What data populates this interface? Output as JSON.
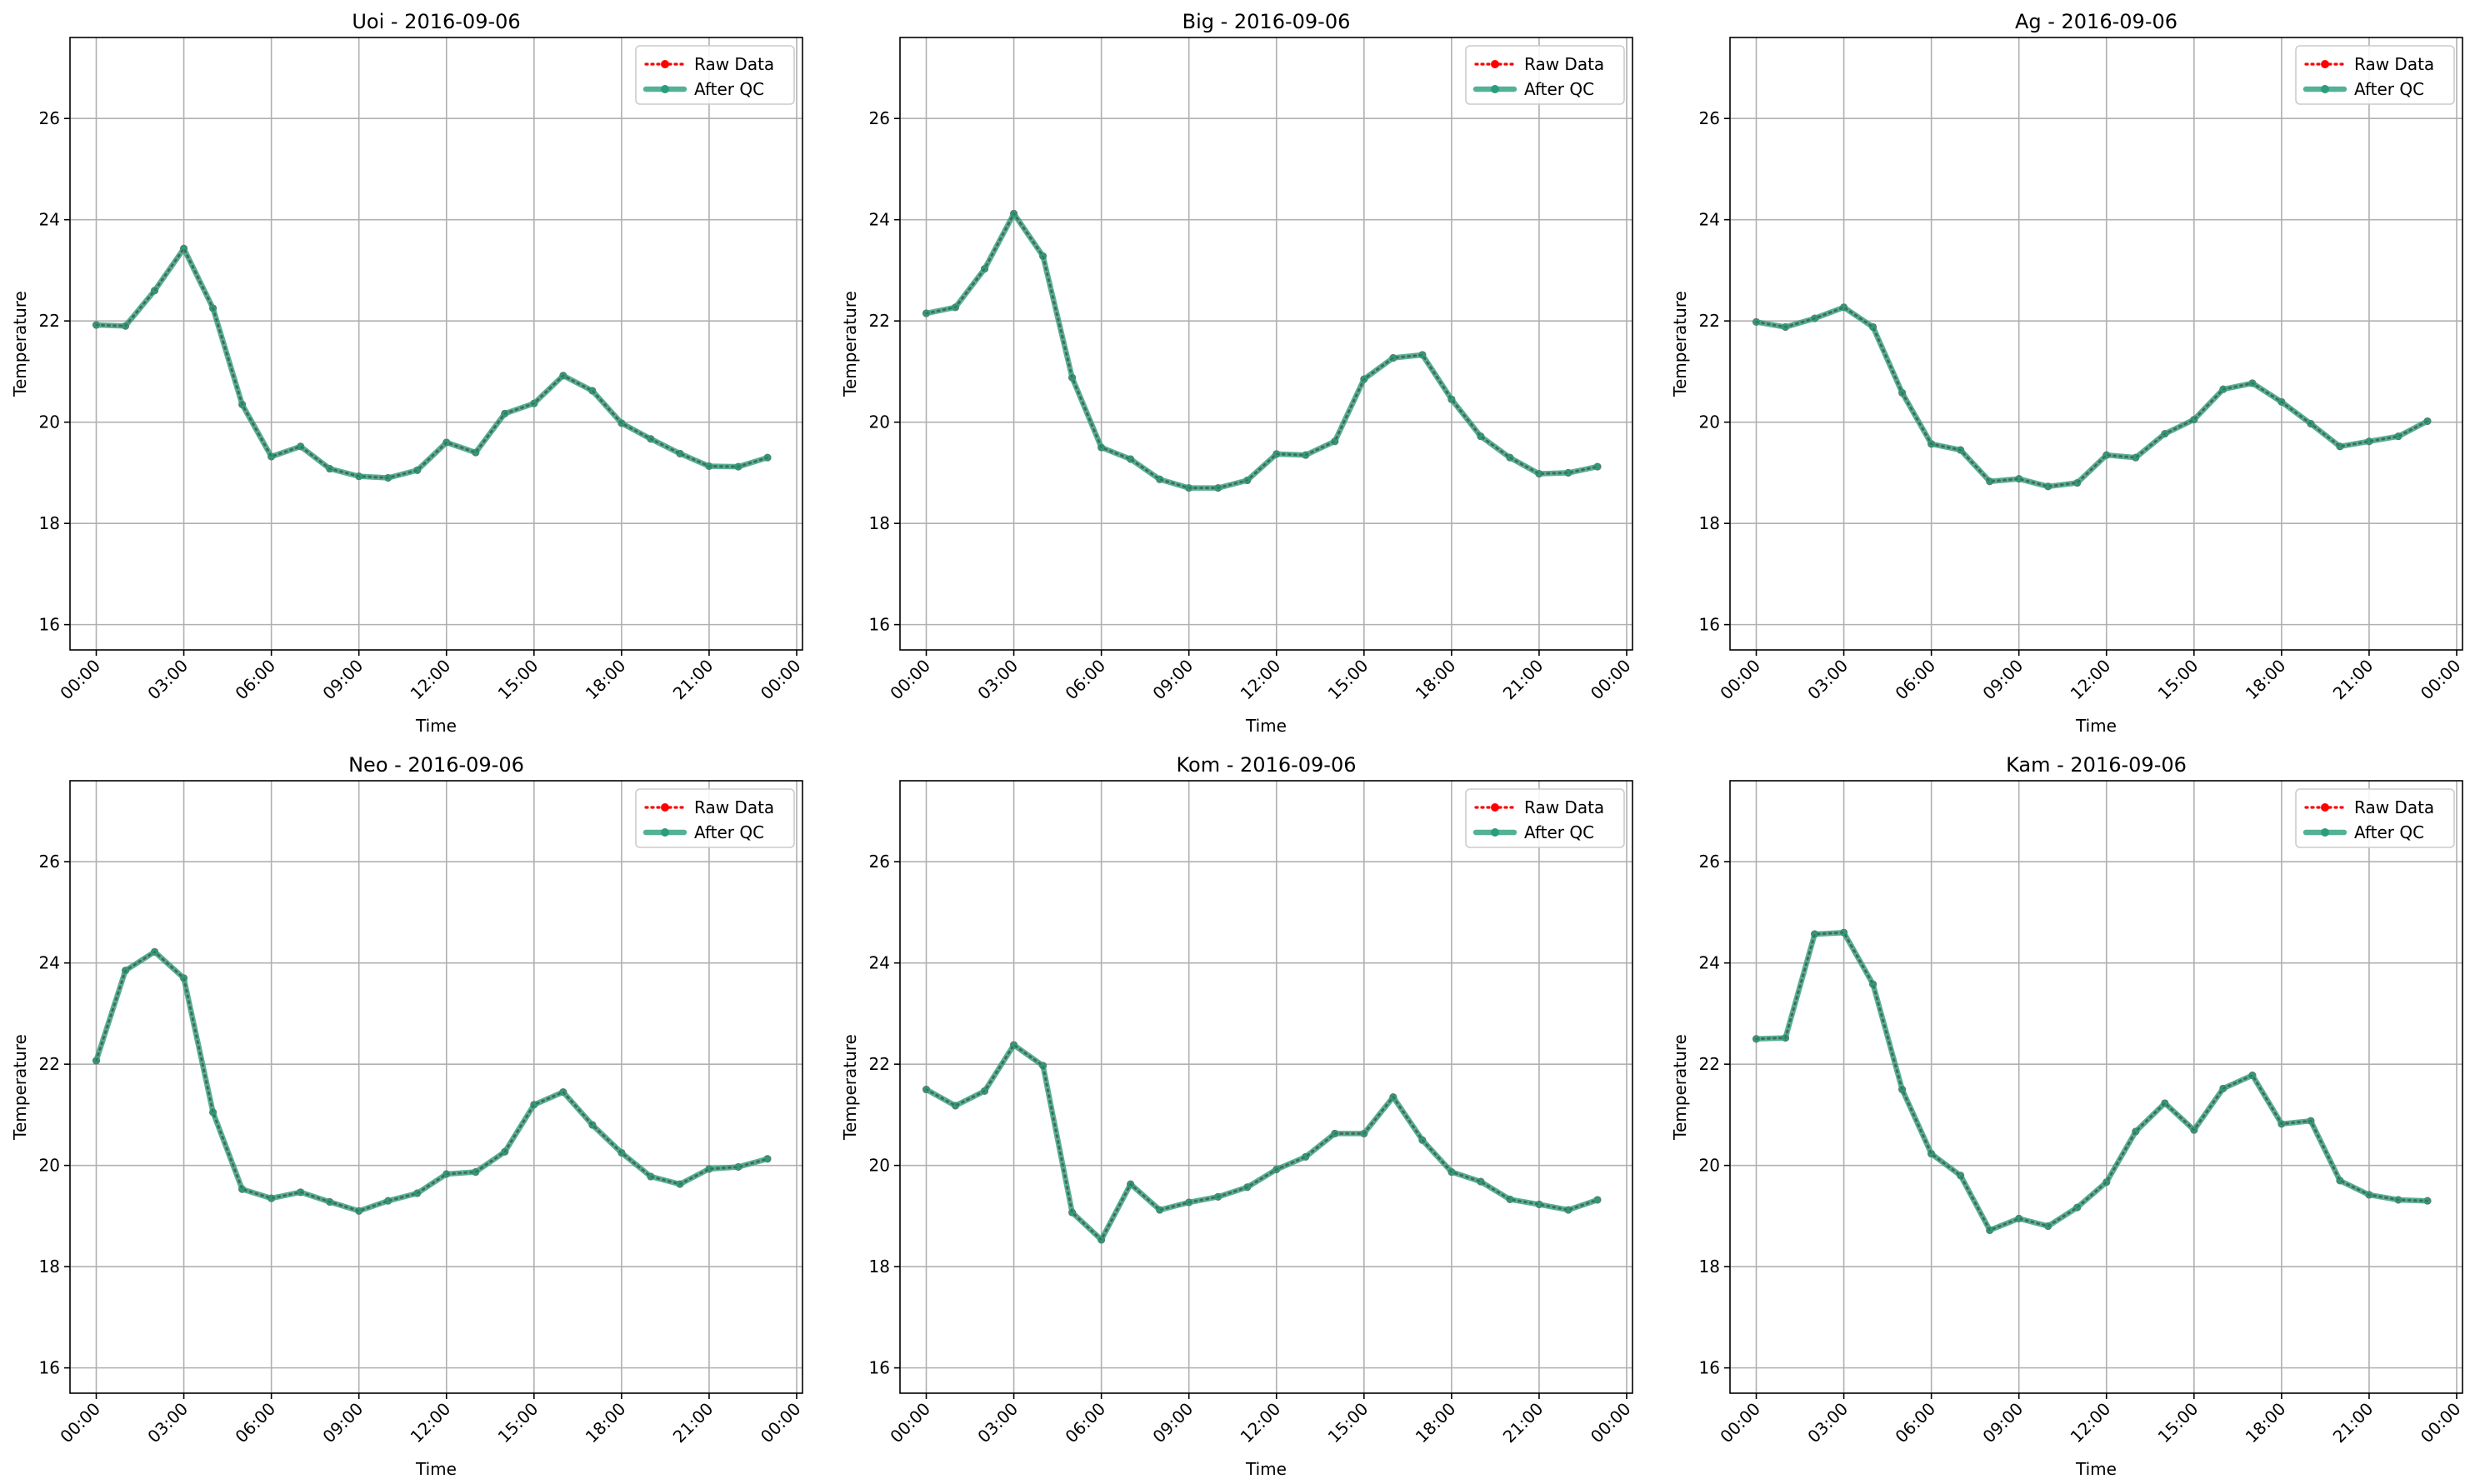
{
  "chart_data": [
    {
      "type": "line",
      "title": "Uoi - 2016-09-06",
      "xlabel": "Time",
      "ylabel": "Temperature",
      "xlim": [
        -0.9,
        24.2
      ],
      "ylim": [
        15.5,
        27.6
      ],
      "xticks": [
        0,
        3,
        6,
        9,
        12,
        15,
        18,
        21,
        24
      ],
      "xtick_labels": [
        "00:00",
        "03:00",
        "06:00",
        "09:00",
        "12:00",
        "15:00",
        "18:00",
        "21:00",
        "00:00"
      ],
      "yticks": [
        16,
        18,
        20,
        22,
        24,
        26
      ],
      "ytick_labels": [
        "16",
        "18",
        "20",
        "22",
        "24",
        "26"
      ],
      "grid": true,
      "legend_position": "top-right",
      "x": [
        0,
        1,
        2,
        3,
        4,
        5,
        6,
        7,
        8,
        9,
        10,
        11,
        12,
        13,
        14,
        15,
        16,
        17,
        18,
        19,
        20,
        21,
        22,
        23
      ],
      "series": [
        {
          "name": "Raw Data",
          "color": "#ff0000",
          "values": [
            21.92,
            21.9,
            22.6,
            23.43,
            22.25,
            20.35,
            19.32,
            19.52,
            19.08,
            18.93,
            18.9,
            19.05,
            19.6,
            19.4,
            20.17,
            20.37,
            20.92,
            20.62,
            19.98,
            19.67,
            19.38,
            19.13,
            19.12,
            19.3
          ]
        },
        {
          "name": "After QC",
          "color": "#2a9d7c",
          "values": [
            21.92,
            21.9,
            22.6,
            23.43,
            22.25,
            20.35,
            19.32,
            19.52,
            19.08,
            18.93,
            18.9,
            19.05,
            19.6,
            19.4,
            20.17,
            20.37,
            20.92,
            20.62,
            19.98,
            19.67,
            19.38,
            19.13,
            19.12,
            19.3
          ]
        }
      ]
    },
    {
      "type": "line",
      "title": "Big - 2016-09-06",
      "xlabel": "Time",
      "ylabel": "Temperature",
      "xlim": [
        -0.9,
        24.2
      ],
      "ylim": [
        15.5,
        27.6
      ],
      "xticks": [
        0,
        3,
        6,
        9,
        12,
        15,
        18,
        21,
        24
      ],
      "xtick_labels": [
        "00:00",
        "03:00",
        "06:00",
        "09:00",
        "12:00",
        "15:00",
        "18:00",
        "21:00",
        "00:00"
      ],
      "yticks": [
        16,
        18,
        20,
        22,
        24,
        26
      ],
      "ytick_labels": [
        "16",
        "18",
        "20",
        "22",
        "24",
        "26"
      ],
      "grid": true,
      "legend_position": "top-right",
      "x": [
        0,
        1,
        2,
        3,
        4,
        5,
        6,
        7,
        8,
        9,
        10,
        11,
        12,
        13,
        14,
        15,
        16,
        17,
        18,
        19,
        20,
        21,
        22,
        23
      ],
      "series": [
        {
          "name": "Raw Data",
          "color": "#ff0000",
          "values": [
            22.15,
            22.27,
            23.03,
            24.12,
            23.28,
            20.88,
            19.5,
            19.27,
            18.87,
            18.7,
            18.7,
            18.85,
            19.37,
            19.35,
            19.62,
            20.85,
            21.27,
            21.33,
            20.45,
            19.72,
            19.3,
            18.98,
            19.0,
            19.12
          ]
        },
        {
          "name": "After QC",
          "color": "#2a9d7c",
          "values": [
            22.15,
            22.27,
            23.03,
            24.12,
            23.28,
            20.88,
            19.5,
            19.27,
            18.87,
            18.7,
            18.7,
            18.85,
            19.37,
            19.35,
            19.62,
            20.85,
            21.27,
            21.33,
            20.45,
            19.72,
            19.3,
            18.98,
            19.0,
            19.12
          ]
        }
      ]
    },
    {
      "type": "line",
      "title": "Ag - 2016-09-06",
      "xlabel": "Time",
      "ylabel": "Temperature",
      "xlim": [
        -0.9,
        24.2
      ],
      "ylim": [
        15.5,
        27.6
      ],
      "xticks": [
        0,
        3,
        6,
        9,
        12,
        15,
        18,
        21,
        24
      ],
      "xtick_labels": [
        "00:00",
        "03:00",
        "06:00",
        "09:00",
        "12:00",
        "15:00",
        "18:00",
        "21:00",
        "00:00"
      ],
      "yticks": [
        16,
        18,
        20,
        22,
        24,
        26
      ],
      "ytick_labels": [
        "16",
        "18",
        "20",
        "22",
        "24",
        "26"
      ],
      "grid": true,
      "legend_position": "top-right",
      "x": [
        0,
        1,
        2,
        3,
        4,
        5,
        6,
        7,
        8,
        9,
        10,
        11,
        12,
        13,
        14,
        15,
        16,
        17,
        18,
        19,
        20,
        21,
        22,
        23
      ],
      "series": [
        {
          "name": "Raw Data",
          "color": "#ff0000",
          "values": [
            21.98,
            21.88,
            22.05,
            22.27,
            21.88,
            20.58,
            19.57,
            19.45,
            18.83,
            18.88,
            18.73,
            18.8,
            19.35,
            19.3,
            19.77,
            20.05,
            20.65,
            20.77,
            20.4,
            19.97,
            19.52,
            19.62,
            19.72,
            20.02
          ]
        },
        {
          "name": "After QC",
          "color": "#2a9d7c",
          "values": [
            21.98,
            21.88,
            22.05,
            22.27,
            21.88,
            20.58,
            19.57,
            19.45,
            18.83,
            18.88,
            18.73,
            18.8,
            19.35,
            19.3,
            19.77,
            20.05,
            20.65,
            20.77,
            20.4,
            19.97,
            19.52,
            19.62,
            19.72,
            20.02
          ]
        }
      ]
    },
    {
      "type": "line",
      "title": "Neo - 2016-09-06",
      "xlabel": "Time",
      "ylabel": "Temperature",
      "xlim": [
        -0.9,
        24.2
      ],
      "ylim": [
        15.5,
        27.6
      ],
      "xticks": [
        0,
        3,
        6,
        9,
        12,
        15,
        18,
        21,
        24
      ],
      "xtick_labels": [
        "00:00",
        "03:00",
        "06:00",
        "09:00",
        "12:00",
        "15:00",
        "18:00",
        "21:00",
        "00:00"
      ],
      "yticks": [
        16,
        18,
        20,
        22,
        24,
        26
      ],
      "ytick_labels": [
        "16",
        "18",
        "20",
        "22",
        "24",
        "26"
      ],
      "grid": true,
      "legend_position": "top-right",
      "x": [
        0,
        1,
        2,
        3,
        4,
        5,
        6,
        7,
        8,
        9,
        10,
        11,
        12,
        13,
        14,
        15,
        16,
        17,
        18,
        19,
        20,
        21,
        22,
        23
      ],
      "series": [
        {
          "name": "Raw Data",
          "color": "#ff0000",
          "values": [
            22.07,
            23.85,
            24.22,
            23.7,
            21.05,
            19.53,
            19.35,
            19.47,
            19.28,
            19.1,
            19.3,
            19.45,
            19.83,
            19.87,
            20.27,
            21.2,
            21.45,
            20.8,
            20.25,
            19.78,
            19.63,
            19.93,
            19.97,
            20.13
          ]
        },
        {
          "name": "After QC",
          "color": "#2a9d7c",
          "values": [
            22.07,
            23.85,
            24.22,
            23.7,
            21.05,
            19.53,
            19.35,
            19.47,
            19.28,
            19.1,
            19.3,
            19.45,
            19.83,
            19.87,
            20.27,
            21.2,
            21.45,
            20.8,
            20.25,
            19.78,
            19.63,
            19.93,
            19.97,
            20.13
          ]
        }
      ]
    },
    {
      "type": "line",
      "title": "Kom - 2016-09-06",
      "xlabel": "Time",
      "ylabel": "Temperature",
      "xlim": [
        -0.9,
        24.2
      ],
      "ylim": [
        15.5,
        27.6
      ],
      "xticks": [
        0,
        3,
        6,
        9,
        12,
        15,
        18,
        21,
        24
      ],
      "xtick_labels": [
        "00:00",
        "03:00",
        "06:00",
        "09:00",
        "12:00",
        "15:00",
        "18:00",
        "21:00",
        "00:00"
      ],
      "yticks": [
        16,
        18,
        20,
        22,
        24,
        26
      ],
      "ytick_labels": [
        "16",
        "18",
        "20",
        "22",
        "24",
        "26"
      ],
      "grid": true,
      "legend_position": "top-right",
      "x": [
        0,
        1,
        2,
        3,
        4,
        5,
        6,
        7,
        8,
        9,
        10,
        11,
        12,
        13,
        14,
        15,
        16,
        17,
        18,
        19,
        20,
        21,
        22,
        23
      ],
      "series": [
        {
          "name": "Raw Data",
          "color": "#ff0000",
          "values": [
            21.5,
            21.18,
            21.47,
            22.38,
            21.97,
            19.07,
            18.53,
            19.63,
            19.12,
            19.27,
            19.38,
            19.57,
            19.92,
            20.17,
            20.63,
            20.63,
            21.35,
            20.5,
            19.87,
            19.68,
            19.33,
            19.23,
            19.12,
            19.32
          ]
        },
        {
          "name": "After QC",
          "color": "#2a9d7c",
          "values": [
            21.5,
            21.18,
            21.47,
            22.38,
            21.97,
            19.07,
            18.53,
            19.63,
            19.12,
            19.27,
            19.38,
            19.57,
            19.92,
            20.17,
            20.63,
            20.63,
            21.35,
            20.5,
            19.87,
            19.68,
            19.33,
            19.23,
            19.12,
            19.32
          ]
        }
      ]
    },
    {
      "type": "line",
      "title": "Kam - 2016-09-06",
      "xlabel": "Time",
      "ylabel": "Temperature",
      "xlim": [
        -0.9,
        24.2
      ],
      "ylim": [
        15.5,
        27.6
      ],
      "xticks": [
        0,
        3,
        6,
        9,
        12,
        15,
        18,
        21,
        24
      ],
      "xtick_labels": [
        "00:00",
        "03:00",
        "06:00",
        "09:00",
        "12:00",
        "15:00",
        "18:00",
        "21:00",
        "00:00"
      ],
      "yticks": [
        16,
        18,
        20,
        22,
        24,
        26
      ],
      "ytick_labels": [
        "16",
        "18",
        "20",
        "22",
        "24",
        "26"
      ],
      "grid": true,
      "legend_position": "top-right",
      "x": [
        0,
        1,
        2,
        3,
        4,
        5,
        6,
        7,
        8,
        9,
        10,
        11,
        12,
        13,
        14,
        15,
        16,
        17,
        18,
        19,
        20,
        21,
        22,
        23
      ],
      "series": [
        {
          "name": "Raw Data",
          "color": "#ff0000",
          "values": [
            22.5,
            22.52,
            24.57,
            24.6,
            23.58,
            21.5,
            20.23,
            19.8,
            18.72,
            18.95,
            18.8,
            19.17,
            19.67,
            20.67,
            21.23,
            20.7,
            21.52,
            21.78,
            20.82,
            20.88,
            19.7,
            19.42,
            19.32,
            19.3
          ]
        },
        {
          "name": "After QC",
          "color": "#2a9d7c",
          "values": [
            22.5,
            22.52,
            24.57,
            24.6,
            23.58,
            21.5,
            20.23,
            19.8,
            18.72,
            18.95,
            18.8,
            19.17,
            19.67,
            20.67,
            21.23,
            20.7,
            21.52,
            21.78,
            20.82,
            20.88,
            19.7,
            19.42,
            19.32,
            19.3
          ]
        }
      ]
    }
  ]
}
